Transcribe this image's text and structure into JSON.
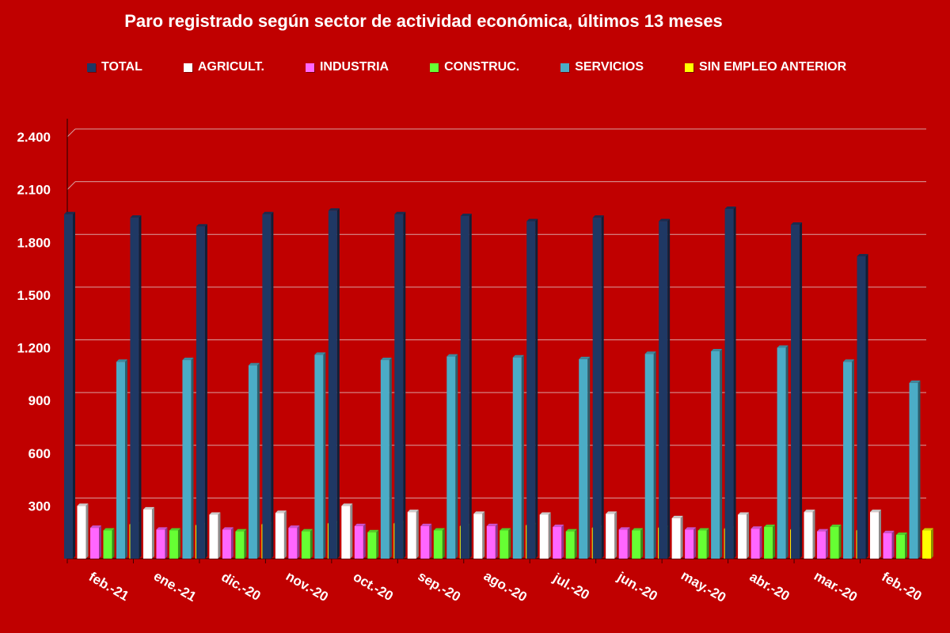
{
  "chart_data": {
    "type": "bar",
    "title": "Paro registrado según sector de actividad económica, últimos 13 meses",
    "categories": [
      "feb.-21",
      "ene.-21",
      "dic.-20",
      "nov.-20",
      "oct.-20",
      "sep.-20",
      "ago.-20",
      "jul.-20",
      "jun.-20",
      "may.-20",
      "abr.-20",
      "mar.-20",
      "feb.-20"
    ],
    "series": [
      {
        "name": "TOTAL",
        "color": "#1f3864",
        "values": [
          1960,
          1940,
          1890,
          1960,
          1980,
          1960,
          1950,
          1920,
          1940,
          1920,
          1990,
          1900,
          1720
        ]
      },
      {
        "name": "AGRICULT.",
        "color": "#ffffff",
        "values": [
          300,
          280,
          250,
          260,
          300,
          265,
          255,
          250,
          255,
          230,
          250,
          265,
          265
        ]
      },
      {
        "name": "INDUSTRIA",
        "color": "#ff66ff",
        "values": [
          175,
          165,
          165,
          175,
          185,
          185,
          185,
          180,
          165,
          165,
          170,
          155,
          145
        ]
      },
      {
        "name": "CONSTRUC.",
        "color": "#66ff33",
        "values": [
          160,
          160,
          155,
          155,
          150,
          160,
          160,
          155,
          160,
          160,
          180,
          180,
          135
        ]
      },
      {
        "name": "SERVICIOS",
        "color": "#4bacc6",
        "values": [
          1120,
          1130,
          1100,
          1160,
          1130,
          1150,
          1145,
          1135,
          1165,
          1180,
          1200,
          1120,
          1000
        ]
      },
      {
        "name": "SIN EMPLEO ANTERIOR",
        "color": "#ffff00",
        "values": [
          195,
          190,
          195,
          200,
          200,
          185,
          190,
          175,
          175,
          170,
          165,
          160,
          160
        ]
      }
    ],
    "yticks": [
      "2.400",
      "2.100",
      "1.800",
      "1.500",
      "1.200",
      "900",
      "600",
      "300"
    ],
    "ylim": [
      0,
      2400
    ],
    "grid": true,
    "legend_position": "top"
  }
}
